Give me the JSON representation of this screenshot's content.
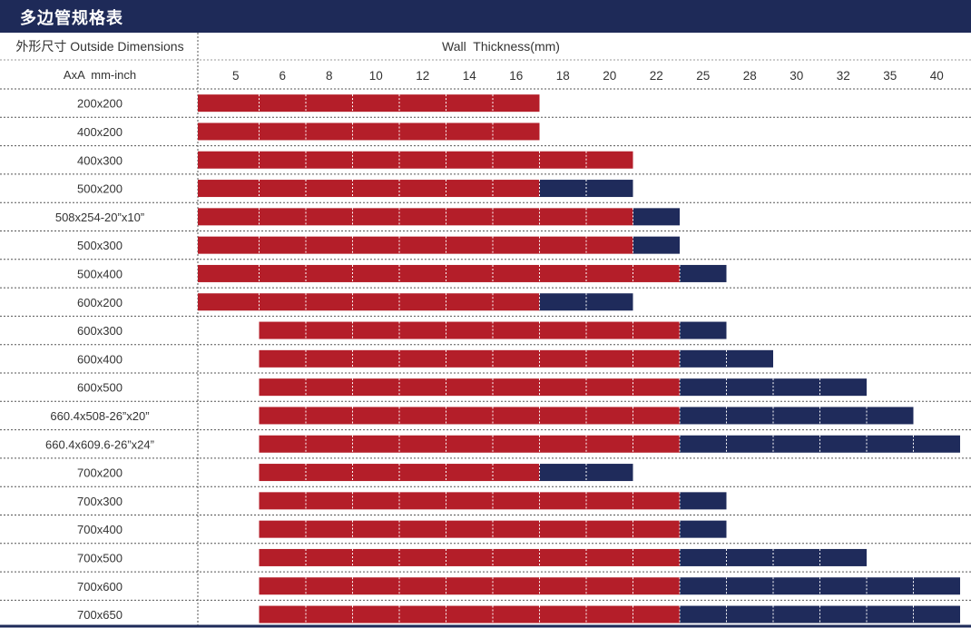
{
  "title": "多边管规格表",
  "column_header": "外形尺寸 Outside Dimensions",
  "sub_header": "AxA  mm-inch",
  "colors": {
    "header_bg": "#1e2a58",
    "red": "#b41e29",
    "navy": "#1f2b5b"
  },
  "chart_data": {
    "type": "bar",
    "orientation": "horizontal-range",
    "xlabel": "Wall  Thickness(mm)",
    "x_ticks": [
      5,
      6,
      8,
      10,
      12,
      14,
      16,
      18,
      20,
      22,
      25,
      28,
      30,
      32,
      35,
      40
    ],
    "rows": [
      {
        "label": "200x200",
        "red": [
          5,
          16
        ],
        "navy": null
      },
      {
        "label": "400x200",
        "red": [
          5,
          16
        ],
        "navy": null
      },
      {
        "label": "400x300",
        "red": [
          5,
          20
        ],
        "navy": null
      },
      {
        "label": "500x200",
        "red": [
          5,
          16
        ],
        "navy": [
          16,
          20
        ]
      },
      {
        "label": "508x254-20”x10”",
        "red": [
          5,
          20
        ],
        "navy": [
          20,
          22
        ]
      },
      {
        "label": "500x300",
        "red": [
          5,
          20
        ],
        "navy": [
          20,
          22
        ]
      },
      {
        "label": "500x400",
        "red": [
          5,
          22
        ],
        "navy": [
          22,
          25
        ]
      },
      {
        "label": "600x200",
        "red": [
          5,
          16
        ],
        "navy": [
          16,
          20
        ]
      },
      {
        "label": "600x300",
        "red": [
          6,
          22
        ],
        "navy": [
          22,
          25
        ]
      },
      {
        "label": "600x400",
        "red": [
          6,
          22
        ],
        "navy": [
          22,
          28
        ]
      },
      {
        "label": "600x500",
        "red": [
          6,
          22
        ],
        "navy": [
          22,
          32
        ]
      },
      {
        "label": "660.4x508-26”x20”",
        "red": [
          6,
          22
        ],
        "navy": [
          22,
          35
        ]
      },
      {
        "label": "660.4x609.6-26”x24”",
        "red": [
          6,
          22
        ],
        "navy": [
          22,
          40
        ]
      },
      {
        "label": "700x200",
        "red": [
          6,
          16
        ],
        "navy": [
          16,
          20
        ]
      },
      {
        "label": "700x300",
        "red": [
          6,
          22
        ],
        "navy": [
          22,
          25
        ]
      },
      {
        "label": "700x400",
        "red": [
          6,
          22
        ],
        "navy": [
          22,
          25
        ]
      },
      {
        "label": "700x500",
        "red": [
          6,
          22
        ],
        "navy": [
          22,
          32
        ]
      },
      {
        "label": "700x600",
        "red": [
          6,
          22
        ],
        "navy": [
          22,
          40
        ]
      },
      {
        "label": "700x650",
        "red": [
          6,
          22
        ],
        "navy": [
          22,
          40
        ]
      }
    ]
  }
}
